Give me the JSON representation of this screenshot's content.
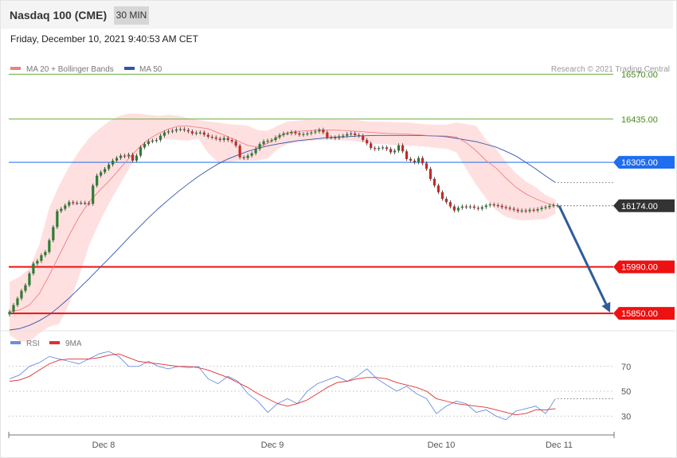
{
  "header": {
    "title": "Nasdaq 100 (CME)",
    "timeframe": "30 MIN"
  },
  "subheader": {
    "datetime": "Friday, December 10, 2021 9:40:53 AM CET"
  },
  "legend": {
    "ma20_bb": "MA 20 + Bollinger Bands",
    "ma50": "MA 50",
    "copyright": "Research © 2021 Trading Central"
  },
  "rsi_legend": {
    "rsi": "RSI",
    "ma9": "9MA"
  },
  "colors": {
    "resistance": "#6aab3a",
    "pivot": "#1f6df0",
    "support": "#ee1111",
    "current": "#333333",
    "ma50": "#3355aa",
    "ma20": "#f08080",
    "band": "#ffd5d5",
    "arrow": "#2f5c9a",
    "rsi": "#6a8ee0",
    "rsi_ma": "#e03030",
    "candle_up": "#2e7d32",
    "candle_down": "#c62828"
  },
  "chart_data": [
    {
      "type": "line",
      "title": "Nasdaq 100 (CME)",
      "interval": "30 MIN",
      "x_ticks": [
        "Dec 8",
        "Dec 9",
        "Dec 10",
        "Dec 11"
      ],
      "ylim": [
        15800,
        16650
      ],
      "levels": [
        {
          "value": 16570.0,
          "label": "16570.00",
          "kind": "resistance"
        },
        {
          "value": 16435.0,
          "label": "16435.00",
          "kind": "resistance"
        },
        {
          "value": 16305.0,
          "label": "16305.00",
          "kind": "pivot"
        },
        {
          "value": 16174.0,
          "label": "16174.00",
          "kind": "current"
        },
        {
          "value": 15990.0,
          "label": "15990.00",
          "kind": "support"
        },
        {
          "value": 15850.0,
          "label": "15850.00",
          "kind": "support"
        }
      ],
      "series": [
        {
          "name": "MA 50",
          "x": [
            0,
            5,
            10,
            15,
            20,
            25,
            30,
            35,
            40,
            45,
            50,
            55,
            60,
            65,
            70,
            75,
            80,
            85,
            90,
            95,
            100,
            105,
            110,
            115,
            120,
            125,
            130,
            135,
            140,
            145,
            150,
            155,
            160,
            165,
            170,
            175,
            180,
            185,
            190,
            195,
            200,
            205,
            210,
            215,
            220,
            225,
            230,
            235,
            240,
            245,
            250,
            255,
            260,
            265,
            270,
            275
          ],
          "values": [
            15800,
            15804,
            15814,
            15828,
            15846,
            15870,
            15896,
            15925,
            15954,
            15985,
            16015,
            16046,
            16078,
            16108,
            16138,
            16166,
            16192,
            16217,
            16240,
            16262,
            16282,
            16300,
            16315,
            16327,
            16338,
            16347,
            16354,
            16360,
            16365,
            16370,
            16373,
            16376,
            16379,
            16381,
            16382,
            16384,
            16385,
            16386,
            16386,
            16386,
            16386,
            16386,
            16385,
            16384,
            16382,
            16377,
            16372,
            16367,
            16359,
            16351,
            16338,
            16324,
            16305,
            16285,
            16264,
            16244
          ]
        },
        {
          "name": "MA 20",
          "x": [
            0,
            5,
            10,
            15,
            20,
            25,
            30,
            35,
            40,
            45,
            50,
            55,
            60,
            65,
            70,
            75,
            80,
            85,
            90,
            95,
            100,
            105,
            110,
            115,
            120,
            125,
            130,
            135,
            140,
            145,
            150,
            155,
            160,
            165,
            170,
            175,
            180,
            185,
            190,
            195,
            200,
            205,
            210,
            215,
            220,
            225,
            230,
            235,
            240,
            245,
            250,
            255,
            260,
            265,
            270,
            275
          ],
          "values": [
            15855,
            15860,
            15875,
            15910,
            15965,
            16025,
            16085,
            16140,
            16185,
            16218,
            16248,
            16282,
            16316,
            16348,
            16374,
            16392,
            16405,
            16414,
            16414,
            16410,
            16406,
            16394,
            16382,
            16369,
            16356,
            16351,
            16362,
            16380,
            16394,
            16398,
            16400,
            16402,
            16402,
            16402,
            16400,
            16398,
            16396,
            16394,
            16392,
            16391,
            16390,
            16388,
            16386,
            16385,
            16384,
            16381,
            16364,
            16340,
            16310,
            16288,
            16257,
            16230,
            16210,
            16195,
            16183,
            16174
          ]
        },
        {
          "name": "Bollinger Upper",
          "x": [
            0,
            5,
            10,
            15,
            20,
            25,
            30,
            35,
            40,
            45,
            50,
            55,
            60,
            65,
            70,
            75,
            80,
            85,
            90,
            95,
            100,
            105,
            110,
            115,
            120,
            125,
            130,
            135,
            140,
            145,
            150,
            155,
            160,
            165,
            170,
            175,
            180,
            185,
            190,
            195,
            200,
            205,
            210,
            215,
            220,
            225,
            230,
            235,
            240,
            245,
            250,
            255,
            260,
            265,
            270,
            275
          ],
          "values": [
            15945,
            15960,
            15985,
            16058,
            16168,
            16235,
            16292,
            16338,
            16377,
            16405,
            16428,
            16444,
            16452,
            16452,
            16448,
            16445,
            16448,
            16445,
            16438,
            16432,
            16428,
            16425,
            16420,
            16418,
            16415,
            16402,
            16400,
            16415,
            16428,
            16430,
            16433,
            16432,
            16433,
            16432,
            16432,
            16432,
            16428,
            16428,
            16427,
            16426,
            16425,
            16422,
            16419,
            16418,
            16418,
            16425,
            16420,
            16415,
            16372,
            16346,
            16306,
            16272,
            16248,
            16230,
            16206,
            16193
          ]
        },
        {
          "name": "Bollinger Lower",
          "x": [
            0,
            5,
            10,
            15,
            20,
            25,
            30,
            35,
            40,
            45,
            50,
            55,
            60,
            65,
            70,
            75,
            80,
            85,
            90,
            95,
            100,
            105,
            110,
            115,
            120,
            125,
            130,
            135,
            140,
            145,
            150,
            155,
            160,
            165,
            170,
            175,
            180,
            185,
            190,
            195,
            200,
            205,
            210,
            215,
            220,
            225,
            230,
            235,
            240,
            245,
            250,
            255,
            260,
            265,
            270,
            275
          ],
          "values": [
            15785,
            15765,
            15765,
            15790,
            15810,
            15818,
            15878,
            15960,
            16054,
            16121,
            16180,
            16232,
            16284,
            16334,
            16362,
            16374,
            16374,
            16372,
            16370,
            16377,
            16333,
            16305,
            16306,
            16310,
            16310,
            16310,
            16317,
            16344,
            16360,
            16365,
            16368,
            16372,
            16372,
            16372,
            16370,
            16368,
            16364,
            16360,
            16359,
            16355,
            16355,
            16354,
            16352,
            16348,
            16346,
            16335,
            16285,
            16237,
            16196,
            16161,
            16141,
            16132,
            16130,
            16132,
            16134,
            16150
          ]
        },
        {
          "name": "Price",
          "x": [
            0,
            2,
            4,
            6,
            8,
            10,
            12,
            14,
            16,
            18,
            20,
            22,
            24,
            26,
            28,
            30,
            32,
            34,
            36,
            38,
            40,
            42,
            44,
            46,
            48,
            50,
            52,
            54,
            56,
            58,
            60,
            62,
            64,
            66,
            68,
            70,
            72,
            74,
            76,
            78,
            80,
            82,
            84,
            86,
            88,
            90,
            92,
            94,
            96,
            98,
            100,
            102,
            104,
            106,
            108,
            110,
            112,
            114,
            116,
            118,
            120,
            122,
            124,
            126,
            128,
            130,
            132,
            134,
            136,
            138,
            140,
            142,
            144,
            146,
            148,
            150,
            152,
            154,
            156,
            158,
            160,
            162,
            164,
            166,
            168,
            170,
            172,
            174,
            176,
            178,
            180,
            182,
            184,
            186,
            188,
            190,
            192,
            194,
            196,
            198,
            200,
            202,
            204,
            206,
            208,
            210,
            212,
            214,
            216,
            218,
            220,
            222,
            224,
            226,
            228,
            230,
            232,
            234,
            236,
            238,
            240,
            242,
            244,
            246,
            248,
            250,
            252,
            254,
            256,
            258,
            260,
            262,
            264,
            266,
            268,
            270,
            272,
            274,
            276
          ],
          "values": [
            15855,
            15875,
            15895,
            15918,
            15935,
            15970,
            16000,
            16008,
            16025,
            16035,
            16070,
            16110,
            16158,
            16165,
            16175,
            16185,
            16182,
            16183,
            16183,
            16182,
            16180,
            16235,
            16265,
            16275,
            16285,
            16298,
            16310,
            16318,
            16325,
            16323,
            16328,
            16310,
            16325,
            16350,
            16360,
            16368,
            16370,
            16372,
            16385,
            16395,
            16398,
            16400,
            16404,
            16405,
            16402,
            16398,
            16392,
            16394,
            16395,
            16388,
            16382,
            16380,
            16376,
            16372,
            16378,
            16372,
            16368,
            16355,
            16320,
            16318,
            16325,
            16332,
            16345,
            16360,
            16368,
            16370,
            16372,
            16380,
            16387,
            16392,
            16392,
            16396,
            16392,
            16388,
            16390,
            16392,
            16395,
            16398,
            16403,
            16395,
            16380,
            16380,
            16378,
            16383,
            16385,
            16390,
            16392,
            16387,
            16385,
            16372,
            16362,
            16348,
            16345,
            16348,
            16350,
            16345,
            16335,
            16340,
            16356,
            16338,
            16315,
            16310,
            16305,
            16318,
            16302,
            16285,
            16255,
            16235,
            16215,
            16195,
            16185,
            16172,
            16160,
            16168,
            16172,
            16170,
            16172,
            16168,
            16165,
            16170,
            16175,
            16178,
            16176,
            16174,
            16170,
            16168,
            16165,
            16162,
            16158,
            16160,
            16158,
            16162,
            16160,
            16164,
            16168,
            16170,
            16174,
            16176,
            16174
          ]
        }
      ]
    },
    {
      "type": "line",
      "x_ticks": [
        "Dec 8",
        "Dec 9",
        "Dec 10",
        "Dec 11"
      ],
      "y_ticks": [
        70,
        50,
        30
      ],
      "ylim": [
        18,
        82
      ],
      "series": [
        {
          "name": "RSI",
          "x": [
            0,
            5,
            10,
            15,
            20,
            25,
            30,
            35,
            40,
            45,
            50,
            55,
            60,
            65,
            70,
            75,
            80,
            85,
            90,
            95,
            100,
            105,
            110,
            115,
            120,
            125,
            130,
            135,
            140,
            145,
            150,
            155,
            160,
            165,
            170,
            175,
            180,
            185,
            190,
            195,
            200,
            205,
            210,
            215,
            220,
            225,
            230,
            235,
            240,
            245,
            250,
            255,
            260,
            265,
            270,
            275
          ],
          "values": [
            60,
            63,
            70,
            73,
            78,
            76,
            74,
            72,
            76,
            80,
            82,
            78,
            70,
            70,
            74,
            70,
            68,
            70,
            69,
            70,
            60,
            56,
            62,
            58,
            48,
            42,
            33,
            40,
            44,
            40,
            50,
            56,
            59,
            62,
            58,
            62,
            68,
            60,
            55,
            50,
            54,
            48,
            44,
            32,
            38,
            42,
            40,
            33,
            35,
            30,
            27,
            34,
            36,
            38,
            32,
            44
          ]
        },
        {
          "name": "9MA",
          "x": [
            0,
            5,
            10,
            15,
            20,
            25,
            30,
            35,
            40,
            45,
            50,
            55,
            60,
            65,
            70,
            75,
            80,
            85,
            90,
            95,
            100,
            105,
            110,
            115,
            120,
            125,
            130,
            135,
            140,
            145,
            150,
            155,
            160,
            165,
            170,
            175,
            180,
            185,
            190,
            195,
            200,
            205,
            210,
            215,
            220,
            225,
            230,
            235,
            240,
            245,
            250,
            255,
            260,
            265,
            270,
            275
          ],
          "values": [
            58,
            59,
            62,
            67,
            72,
            75,
            76,
            76,
            76,
            77,
            79,
            80,
            77,
            74,
            73,
            72,
            71,
            70,
            70,
            69,
            67,
            64,
            61,
            57,
            53,
            48,
            44,
            40,
            38,
            40,
            43,
            48,
            53,
            57,
            58,
            60,
            61,
            61,
            60,
            57,
            55,
            53,
            50,
            44,
            42,
            40,
            39,
            38,
            37,
            35,
            33,
            31,
            32,
            35,
            35,
            36
          ]
        }
      ]
    }
  ]
}
